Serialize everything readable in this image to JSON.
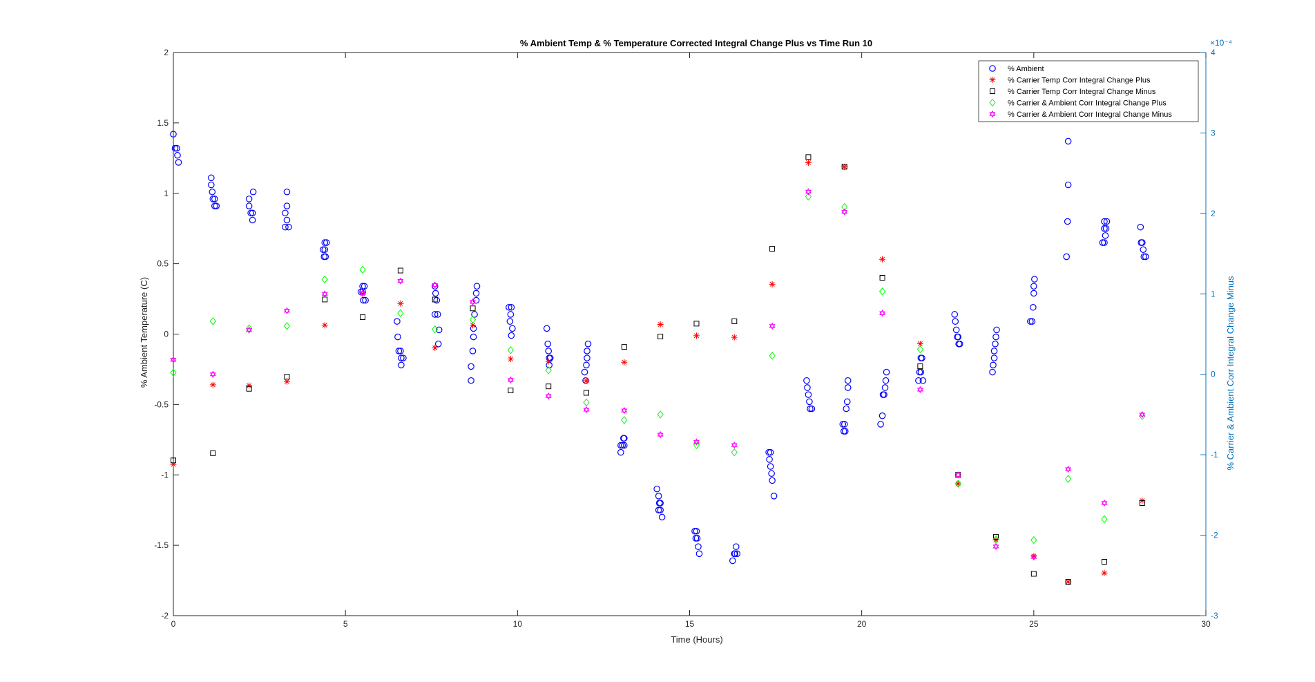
{
  "chart_data": {
    "type": "scatter",
    "title": "% Ambient Temp & % Temperature Corrected Integral Change Plus vs Time Run 10",
    "xlabel": "Time (Hours)",
    "ylabel": "% Ambient Temperature (C)",
    "y2label": "% Carrier & Ambient Corr Integral Change Minus",
    "y2_exponent_label": "×10⁻⁴",
    "xlim": [
      0,
      30
    ],
    "ylim": [
      -2,
      2
    ],
    "y2lim": [
      -3,
      4
    ],
    "xticks": [
      "0",
      "5",
      "10",
      "15",
      "20",
      "25",
      "30"
    ],
    "yticks": [
      "-2",
      "-1.5",
      "-1",
      "-0.5",
      "0",
      "0.5",
      "1",
      "1.5",
      "2"
    ],
    "y2ticks": [
      "-3",
      "-2",
      "-1",
      "0",
      "1",
      "2",
      "3",
      "4"
    ],
    "grid": false,
    "legend_position": "top-right",
    "colors": {
      "left_axis": "#262626",
      "right_axis": "#0072BD"
    },
    "series": [
      {
        "name": "% Ambient",
        "axis": "left",
        "marker": "circle",
        "color": "#0000FF",
        "points": [
          [
            0.0,
            1.42
          ],
          [
            0.05,
            1.32
          ],
          [
            0.1,
            1.32
          ],
          [
            0.12,
            1.27
          ],
          [
            0.15,
            1.22
          ],
          [
            1.1,
            1.11
          ],
          [
            1.1,
            1.06
          ],
          [
            1.13,
            1.01
          ],
          [
            1.15,
            0.96
          ],
          [
            1.2,
            0.96
          ],
          [
            1.2,
            0.91
          ],
          [
            1.25,
            0.91
          ],
          [
            2.2,
            0.96
          ],
          [
            2.2,
            0.91
          ],
          [
            2.25,
            0.86
          ],
          [
            2.3,
            0.86
          ],
          [
            2.3,
            0.81
          ],
          [
            2.32,
            1.01
          ],
          [
            3.3,
            1.01
          ],
          [
            3.3,
            0.91
          ],
          [
            3.25,
            0.86
          ],
          [
            3.3,
            0.81
          ],
          [
            3.35,
            0.76
          ],
          [
            3.25,
            0.76
          ],
          [
            4.4,
            0.65
          ],
          [
            4.45,
            0.65
          ],
          [
            4.4,
            0.6
          ],
          [
            4.35,
            0.6
          ],
          [
            4.38,
            0.55
          ],
          [
            4.42,
            0.55
          ],
          [
            5.5,
            0.34
          ],
          [
            5.55,
            0.34
          ],
          [
            5.45,
            0.3
          ],
          [
            5.5,
            0.3
          ],
          [
            5.52,
            0.24
          ],
          [
            5.58,
            0.24
          ],
          [
            6.5,
            0.09
          ],
          [
            6.52,
            -0.02
          ],
          [
            6.55,
            -0.12
          ],
          [
            6.6,
            -0.12
          ],
          [
            6.62,
            -0.17
          ],
          [
            6.68,
            -0.17
          ],
          [
            6.62,
            -0.22
          ],
          [
            7.6,
            0.34
          ],
          [
            7.62,
            0.29
          ],
          [
            7.65,
            0.24
          ],
          [
            7.6,
            0.14
          ],
          [
            7.68,
            0.14
          ],
          [
            7.72,
            0.03
          ],
          [
            7.7,
            -0.07
          ],
          [
            8.65,
            -0.33
          ],
          [
            8.65,
            -0.23
          ],
          [
            8.7,
            -0.12
          ],
          [
            8.72,
            -0.02
          ],
          [
            8.72,
            0.04
          ],
          [
            8.75,
            0.14
          ],
          [
            8.8,
            0.24
          ],
          [
            8.8,
            0.29
          ],
          [
            8.82,
            0.34
          ],
          [
            9.75,
            0.19
          ],
          [
            9.82,
            0.19
          ],
          [
            9.8,
            0.14
          ],
          [
            9.78,
            0.09
          ],
          [
            9.85,
            0.04
          ],
          [
            9.82,
            -0.01
          ],
          [
            10.85,
            0.04
          ],
          [
            10.88,
            -0.07
          ],
          [
            10.9,
            -0.12
          ],
          [
            10.92,
            -0.17
          ],
          [
            10.95,
            -0.17
          ],
          [
            10.92,
            -0.22
          ],
          [
            11.95,
            -0.27
          ],
          [
            11.98,
            -0.33
          ],
          [
            12.0,
            -0.22
          ],
          [
            12.02,
            -0.17
          ],
          [
            12.02,
            -0.12
          ],
          [
            12.05,
            -0.07
          ],
          [
            13.0,
            -0.84
          ],
          [
            13.05,
            -0.79
          ],
          [
            13.1,
            -0.79
          ],
          [
            13.08,
            -0.74
          ],
          [
            13.1,
            -0.74
          ],
          [
            13.0,
            -0.79
          ],
          [
            14.05,
            -1.1
          ],
          [
            14.1,
            -1.15
          ],
          [
            14.12,
            -1.2
          ],
          [
            14.15,
            -1.2
          ],
          [
            14.1,
            -1.25
          ],
          [
            14.15,
            -1.25
          ],
          [
            14.2,
            -1.3
          ],
          [
            15.15,
            -1.4
          ],
          [
            15.2,
            -1.4
          ],
          [
            15.18,
            -1.45
          ],
          [
            15.22,
            -1.45
          ],
          [
            15.25,
            -1.51
          ],
          [
            15.28,
            -1.56
          ],
          [
            16.25,
            -1.61
          ],
          [
            16.3,
            -1.56
          ],
          [
            16.32,
            -1.56
          ],
          [
            16.35,
            -1.51
          ],
          [
            16.38,
            -1.56
          ],
          [
            16.3,
            -1.56
          ],
          [
            17.3,
            -0.84
          ],
          [
            17.35,
            -0.84
          ],
          [
            17.32,
            -0.89
          ],
          [
            17.35,
            -0.94
          ],
          [
            17.38,
            -0.99
          ],
          [
            17.4,
            -1.04
          ],
          [
            17.45,
            -1.15
          ],
          [
            18.4,
            -0.33
          ],
          [
            18.42,
            -0.38
          ],
          [
            18.45,
            -0.43
          ],
          [
            18.48,
            -0.48
          ],
          [
            18.5,
            -0.53
          ],
          [
            18.55,
            -0.53
          ],
          [
            19.45,
            -0.64
          ],
          [
            19.5,
            -0.64
          ],
          [
            19.48,
            -0.69
          ],
          [
            19.52,
            -0.69
          ],
          [
            19.55,
            -0.53
          ],
          [
            19.58,
            -0.48
          ],
          [
            19.6,
            -0.38
          ],
          [
            19.6,
            -0.33
          ],
          [
            20.55,
            -0.64
          ],
          [
            20.6,
            -0.58
          ],
          [
            20.62,
            -0.43
          ],
          [
            20.65,
            -0.43
          ],
          [
            20.68,
            -0.38
          ],
          [
            20.7,
            -0.33
          ],
          [
            20.72,
            -0.27
          ],
          [
            21.65,
            -0.33
          ],
          [
            21.68,
            -0.27
          ],
          [
            21.72,
            -0.27
          ],
          [
            21.72,
            -0.17
          ],
          [
            21.75,
            -0.17
          ],
          [
            21.78,
            -0.33
          ],
          [
            22.7,
            0.14
          ],
          [
            22.72,
            0.09
          ],
          [
            22.75,
            0.03
          ],
          [
            22.78,
            -0.02
          ],
          [
            22.8,
            -0.02
          ],
          [
            22.82,
            -0.07
          ],
          [
            22.85,
            -0.07
          ],
          [
            23.8,
            -0.27
          ],
          [
            23.82,
            -0.22
          ],
          [
            23.85,
            -0.17
          ],
          [
            23.85,
            -0.12
          ],
          [
            23.88,
            -0.07
          ],
          [
            23.9,
            -0.02
          ],
          [
            23.92,
            0.03
          ],
          [
            24.9,
            0.09
          ],
          [
            24.95,
            0.09
          ],
          [
            24.98,
            0.19
          ],
          [
            25.0,
            0.29
          ],
          [
            25.0,
            0.34
          ],
          [
            25.02,
            0.39
          ],
          [
            25.95,
            0.55
          ],
          [
            25.98,
            0.8
          ],
          [
            26.0,
            1.06
          ],
          [
            26.0,
            1.37
          ],
          [
            27.0,
            0.65
          ],
          [
            27.05,
            0.65
          ],
          [
            27.08,
            0.7
          ],
          [
            27.1,
            0.75
          ],
          [
            27.05,
            0.75
          ],
          [
            27.12,
            0.8
          ],
          [
            27.05,
            0.8
          ],
          [
            28.1,
            0.76
          ],
          [
            28.12,
            0.65
          ],
          [
            28.15,
            0.65
          ],
          [
            28.18,
            0.6
          ],
          [
            28.2,
            0.55
          ],
          [
            28.25,
            0.55
          ]
        ]
      },
      {
        "name": "% Carrier Temp Corr Integral Change Plus",
        "axis": "right",
        "marker": "asterisk",
        "color": "#FF0000",
        "points": [
          [
            0.0,
            -1.12
          ],
          [
            1.15,
            -0.13
          ],
          [
            2.2,
            -0.14
          ],
          [
            3.3,
            -0.09
          ],
          [
            4.4,
            0.61
          ],
          [
            5.5,
            1.0
          ],
          [
            6.6,
            0.88
          ],
          [
            7.6,
            0.33
          ],
          [
            8.7,
            0.61
          ],
          [
            9.8,
            0.19
          ],
          [
            10.9,
            0.16
          ],
          [
            12.0,
            -0.08
          ],
          [
            13.1,
            0.15
          ],
          [
            14.15,
            0.62
          ],
          [
            15.2,
            0.48
          ],
          [
            16.3,
            0.46
          ],
          [
            17.4,
            1.12
          ],
          [
            18.45,
            2.63
          ],
          [
            19.5,
            2.58
          ],
          [
            20.6,
            1.43
          ],
          [
            21.7,
            0.38
          ],
          [
            22.8,
            -1.36
          ],
          [
            23.9,
            -2.06
          ],
          [
            25.0,
            -2.26
          ],
          [
            26.0,
            -2.58
          ],
          [
            27.05,
            -2.47
          ],
          [
            28.15,
            -1.57
          ]
        ]
      },
      {
        "name": "% Carrier Temp Corr Integral Change Minus",
        "axis": "right",
        "marker": "square",
        "color": "#000000",
        "points": [
          [
            0.0,
            -1.07
          ],
          [
            1.15,
            -0.98
          ],
          [
            2.2,
            -0.18
          ],
          [
            3.3,
            -0.03
          ],
          [
            4.4,
            0.93
          ],
          [
            5.5,
            0.71
          ],
          [
            6.6,
            1.29
          ],
          [
            7.6,
            0.93
          ],
          [
            8.7,
            0.82
          ],
          [
            9.8,
            -0.2
          ],
          [
            10.9,
            -0.15
          ],
          [
            12.0,
            -0.23
          ],
          [
            13.1,
            0.34
          ],
          [
            14.15,
            0.47
          ],
          [
            15.2,
            0.63
          ],
          [
            16.3,
            0.66
          ],
          [
            17.4,
            1.56
          ],
          [
            18.45,
            2.7
          ],
          [
            19.5,
            2.58
          ],
          [
            20.6,
            1.2
          ],
          [
            21.7,
            0.1
          ],
          [
            22.8,
            -1.25
          ],
          [
            23.9,
            -2.02
          ],
          [
            25.0,
            -2.48
          ],
          [
            26.0,
            -2.58
          ],
          [
            27.05,
            -2.33
          ],
          [
            28.15,
            -1.6
          ]
        ]
      },
      {
        "name": "% Carrier & Ambient Corr Integral Change Plus",
        "axis": "right",
        "marker": "diamond",
        "color": "#00FF00",
        "points": [
          [
            0.0,
            0.02
          ],
          [
            1.15,
            0.66
          ],
          [
            2.2,
            0.57
          ],
          [
            3.3,
            0.6
          ],
          [
            4.4,
            1.18
          ],
          [
            5.5,
            1.3
          ],
          [
            6.6,
            0.76
          ],
          [
            7.6,
            0.56
          ],
          [
            8.7,
            0.68
          ],
          [
            9.8,
            0.3
          ],
          [
            10.9,
            0.05
          ],
          [
            12.0,
            -0.35
          ],
          [
            13.1,
            -0.57
          ],
          [
            14.15,
            -0.5
          ],
          [
            15.2,
            -0.88
          ],
          [
            16.3,
            -0.97
          ],
          [
            17.4,
            0.23
          ],
          [
            18.45,
            2.21
          ],
          [
            19.5,
            2.08
          ],
          [
            20.6,
            1.03
          ],
          [
            21.7,
            0.31
          ],
          [
            22.8,
            -1.36
          ],
          [
            23.9,
            -2.05
          ],
          [
            25.0,
            -2.06
          ],
          [
            26.0,
            -1.3
          ],
          [
            27.05,
            -1.8
          ],
          [
            28.15,
            -0.52
          ]
        ]
      },
      {
        "name": "% Carrier & Ambient Corr Integral Change Minus",
        "axis": "right",
        "marker": "hexagram",
        "color": "#FF00FF",
        "points": [
          [
            0.0,
            0.18
          ],
          [
            1.15,
            0.0
          ],
          [
            2.2,
            0.55
          ],
          [
            3.3,
            0.79
          ],
          [
            4.4,
            1.0
          ],
          [
            5.5,
            1.01
          ],
          [
            6.6,
            1.16
          ],
          [
            7.6,
            1.11
          ],
          [
            8.7,
            0.9
          ],
          [
            9.8,
            -0.07
          ],
          [
            10.9,
            -0.27
          ],
          [
            12.0,
            -0.44
          ],
          [
            13.1,
            -0.45
          ],
          [
            14.15,
            -0.75
          ],
          [
            15.2,
            -0.84
          ],
          [
            16.3,
            -0.88
          ],
          [
            17.4,
            0.6
          ],
          [
            18.45,
            2.27
          ],
          [
            19.5,
            2.02
          ],
          [
            20.6,
            0.76
          ],
          [
            21.7,
            -0.19
          ],
          [
            22.8,
            -1.25
          ],
          [
            23.9,
            -2.14
          ],
          [
            25.0,
            -2.27
          ],
          [
            26.0,
            -1.18
          ],
          [
            27.05,
            -1.6
          ],
          [
            28.15,
            -0.5
          ]
        ]
      }
    ]
  }
}
